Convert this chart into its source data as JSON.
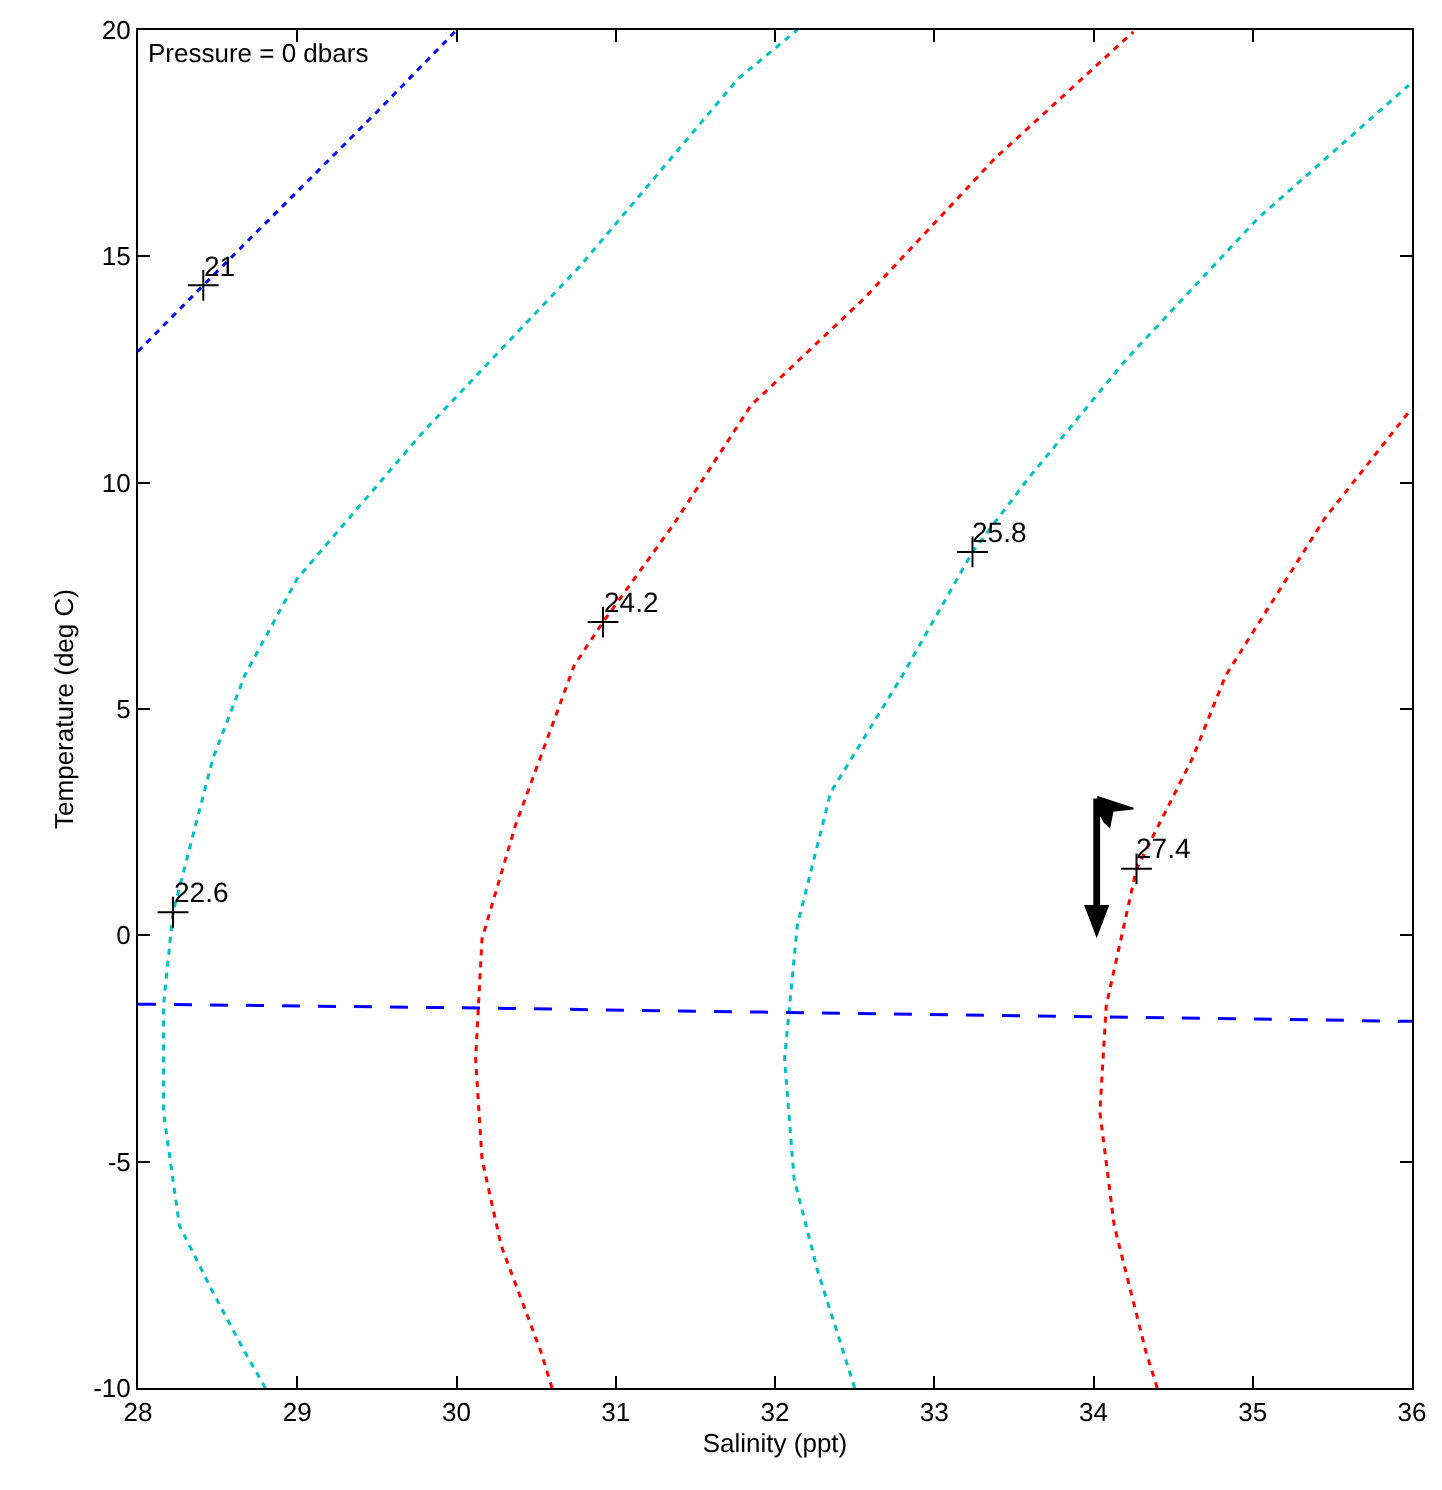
{
  "chart_data": {
    "type": "line",
    "xlabel": "Salinity (ppt)",
    "ylabel": "Temperature (deg C)",
    "xlim": [
      28,
      36
    ],
    "xticks": [
      28,
      29,
      30,
      31,
      32,
      33,
      34,
      35,
      36
    ],
    "ylim": [
      -10,
      20
    ],
    "yticks": [
      -10,
      -5,
      0,
      5,
      10,
      15,
      20
    ],
    "grid": false,
    "line_style": "dotted",
    "series": [
      {
        "color": "#0000ff",
        "x": [
          28.0,
          28.41,
          29.04,
          29.5,
          29.99
        ],
        "values": [
          12.9,
          14.36,
          16.57,
          18.19,
          19.96
        ]
      },
      {
        "color": "#00bfbf",
        "x": [
          28.8,
          28.67,
          28.47,
          28.26,
          28.16,
          28.16,
          28.22,
          28.47,
          28.67,
          29.0,
          29.79,
          30.78,
          31.77,
          32.14
        ],
        "values": [
          -10,
          -9.2,
          -7.88,
          -6.41,
          -3.9,
          -1.55,
          0.51,
          3.9,
          5.74,
          7.88,
          11.12,
          14.8,
          18.93,
          20
        ]
      },
      {
        "color": "#ff0000",
        "x": [
          30.6,
          30.53,
          30.28,
          30.16,
          30.12,
          30.16,
          30.37,
          30.74,
          30.92,
          31.36,
          31.85,
          32.56,
          33.38,
          34.25
        ],
        "values": [
          -10,
          -9.2,
          -6.85,
          -4.94,
          -2.73,
          -0.08,
          2.43,
          5.97,
          6.92,
          9.06,
          11.71,
          14.07,
          17.16,
          19.96
        ]
      },
      {
        "color": "#00bfbf",
        "x": [
          32.5,
          32.43,
          32.27,
          32.12,
          32.06,
          32.14,
          32.35,
          32.8,
          33.24,
          33.59,
          34.21,
          35.03,
          35.98
        ],
        "values": [
          -10,
          -9.21,
          -7.44,
          -5.38,
          -2.73,
          0.22,
          3.16,
          5.74,
          8.47,
          10.09,
          12.74,
          15.83,
          18.78
        ]
      },
      {
        "color": "#ff0000",
        "x": [
          34.4,
          34.33,
          34.13,
          34.04,
          34.08,
          34.27,
          34.62,
          34.83,
          35.45,
          35.98
        ],
        "values": [
          -10,
          -9.21,
          -6.41,
          -3.9,
          -1.55,
          1.47,
          3.9,
          5.74,
          9.2,
          11.56
        ]
      },
      {
        "color": "#0000ff",
        "line_style": "dashed",
        "x": [
          28,
          30,
          32,
          34,
          36
        ],
        "values": [
          -1.52,
          -1.6,
          -1.7,
          -1.8,
          -1.9
        ]
      },
      {
        "type": "scatter",
        "marker": "cross",
        "color": "#000000",
        "x": [
          28.41,
          28.22,
          30.92,
          33.24,
          34.27
        ],
        "values": [
          14.36,
          0.51,
          6.92,
          8.47,
          1.47
        ]
      }
    ],
    "annotations": [
      "Pressure = 0 dbars",
      {
        "text": "21",
        "x": 28.41,
        "y": 14.36
      },
      {
        "text": "22.6",
        "x": 28.22,
        "y": 0.51
      },
      {
        "text": "24.2",
        "x": 30.92,
        "y": 6.92
      },
      {
        "text": "25.8",
        "x": 33.24,
        "y": 8.47
      },
      {
        "text": "27.4",
        "x": 34.27,
        "y": 1.47
      }
    ]
  }
}
